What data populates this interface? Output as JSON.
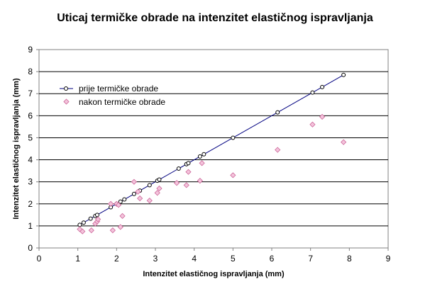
{
  "chart_data": {
    "type": "scatter",
    "title": "Uticaj termičke obrade na intenzitet elastičnog ispravljanja",
    "xlabel": "Intenzitet elastičnog ispravljanja (mm)",
    "ylabel": "Intenzitet elastičnog ispravljanja (mm)",
    "xlim": [
      0,
      9
    ],
    "ylim": [
      0,
      9
    ],
    "xticks": [
      "0",
      "1",
      "2",
      "3",
      "4",
      "5",
      "6",
      "7",
      "8",
      "9"
    ],
    "yticks": [
      "0",
      "1",
      "2",
      "3",
      "4",
      "5",
      "6",
      "7",
      "8",
      "9"
    ],
    "grid": "horizontal",
    "legend_position": "top-left",
    "series": [
      {
        "name": "prije termičke obrade",
        "style": "line-with-markers",
        "color": "#000080",
        "marker_color": "#000000",
        "x": [
          1.05,
          1.15,
          1.33,
          1.45,
          1.5,
          1.85,
          2.0,
          2.1,
          2.2,
          2.45,
          2.6,
          2.85,
          3.05,
          3.1,
          3.6,
          3.8,
          3.85,
          4.15,
          4.25,
          5.0,
          6.15,
          7.05,
          7.3,
          7.85
        ],
        "y": [
          1.05,
          1.15,
          1.33,
          1.45,
          1.5,
          1.85,
          2.0,
          2.1,
          2.2,
          2.45,
          2.6,
          2.85,
          3.05,
          3.1,
          3.6,
          3.8,
          3.85,
          4.15,
          4.25,
          5.0,
          6.15,
          7.05,
          7.3,
          7.85
        ]
      },
      {
        "name": "nakon termičke obrade",
        "style": "markers",
        "color": "#cc6699",
        "marker_color": "#f4c4dc",
        "x": [
          1.05,
          1.12,
          1.35,
          1.45,
          1.5,
          1.52,
          1.85,
          1.9,
          2.0,
          2.05,
          2.1,
          2.15,
          2.45,
          2.55,
          2.6,
          2.85,
          3.05,
          3.1,
          3.55,
          3.8,
          3.85,
          4.15,
          4.2,
          5.0,
          6.15,
          7.05,
          7.3,
          7.85
        ],
        "y": [
          0.85,
          0.75,
          0.8,
          1.1,
          1.2,
          1.3,
          2.0,
          0.8,
          2.0,
          1.95,
          0.95,
          1.45,
          3.0,
          2.55,
          2.25,
          2.15,
          2.5,
          2.7,
          2.95,
          2.85,
          3.45,
          3.05,
          3.85,
          3.3,
          4.45,
          5.6,
          5.95,
          4.8
        ]
      }
    ]
  }
}
